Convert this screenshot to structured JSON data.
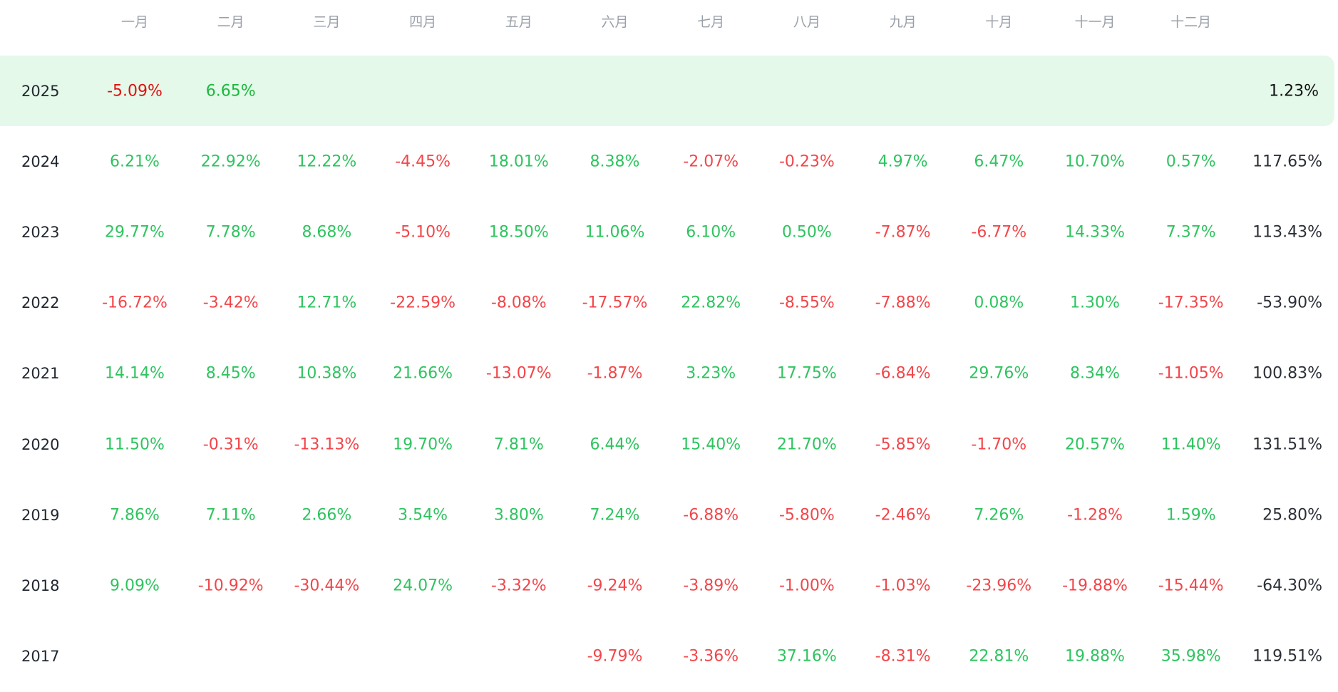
{
  "months": [
    "一月",
    "二月",
    "三月",
    "四月",
    "五月",
    "六月",
    "七月",
    "八月",
    "九月",
    "十月",
    "十一月",
    "十二月"
  ],
  "colors": {
    "positive": "#2ec45f",
    "negative": "#f2464a",
    "highlight_bg": "#e4f9e9",
    "header_text": "#9aa0a8"
  },
  "rows": [
    {
      "year": "2025",
      "highlight": true,
      "values": [
        "-5.09%",
        "6.65%",
        "",
        "",
        "",
        "",
        "",
        "",
        "",
        "",
        "",
        ""
      ],
      "total": "1.23%"
    },
    {
      "year": "2024",
      "highlight": false,
      "values": [
        "6.21%",
        "22.92%",
        "12.22%",
        "-4.45%",
        "18.01%",
        "8.38%",
        "-2.07%",
        "-0.23%",
        "4.97%",
        "6.47%",
        "10.70%",
        "0.57%"
      ],
      "total": "117.65%"
    },
    {
      "year": "2023",
      "highlight": false,
      "values": [
        "29.77%",
        "7.78%",
        "8.68%",
        "-5.10%",
        "18.50%",
        "11.06%",
        "6.10%",
        "0.50%",
        "-7.87%",
        "-6.77%",
        "14.33%",
        "7.37%"
      ],
      "total": "113.43%"
    },
    {
      "year": "2022",
      "highlight": false,
      "values": [
        "-16.72%",
        "-3.42%",
        "12.71%",
        "-22.59%",
        "-8.08%",
        "-17.57%",
        "22.82%",
        "-8.55%",
        "-7.88%",
        "0.08%",
        "1.30%",
        "-17.35%"
      ],
      "total": "-53.90%"
    },
    {
      "year": "2021",
      "highlight": false,
      "values": [
        "14.14%",
        "8.45%",
        "10.38%",
        "21.66%",
        "-13.07%",
        "-1.87%",
        "3.23%",
        "17.75%",
        "-6.84%",
        "29.76%",
        "8.34%",
        "-11.05%"
      ],
      "total": "100.83%"
    },
    {
      "year": "2020",
      "highlight": false,
      "values": [
        "11.50%",
        "-0.31%",
        "-13.13%",
        "19.70%",
        "7.81%",
        "6.44%",
        "15.40%",
        "21.70%",
        "-5.85%",
        "-1.70%",
        "20.57%",
        "11.40%"
      ],
      "total": "131.51%"
    },
    {
      "year": "2019",
      "highlight": false,
      "values": [
        "7.86%",
        "7.11%",
        "2.66%",
        "3.54%",
        "3.80%",
        "7.24%",
        "-6.88%",
        "-5.80%",
        "-2.46%",
        "7.26%",
        "-1.28%",
        "1.59%"
      ],
      "total": "25.80%"
    },
    {
      "year": "2018",
      "highlight": false,
      "values": [
        "9.09%",
        "-10.92%",
        "-30.44%",
        "24.07%",
        "-3.32%",
        "-9.24%",
        "-3.89%",
        "-1.00%",
        "-1.03%",
        "-23.96%",
        "-19.88%",
        "-15.44%"
      ],
      "total": "-64.30%"
    },
    {
      "year": "2017",
      "highlight": false,
      "values": [
        "",
        "",
        "",
        "",
        "",
        "-9.79%",
        "-3.36%",
        "37.16%",
        "-8.31%",
        "22.81%",
        "19.88%",
        "35.98%"
      ],
      "total": "119.51%"
    }
  ]
}
